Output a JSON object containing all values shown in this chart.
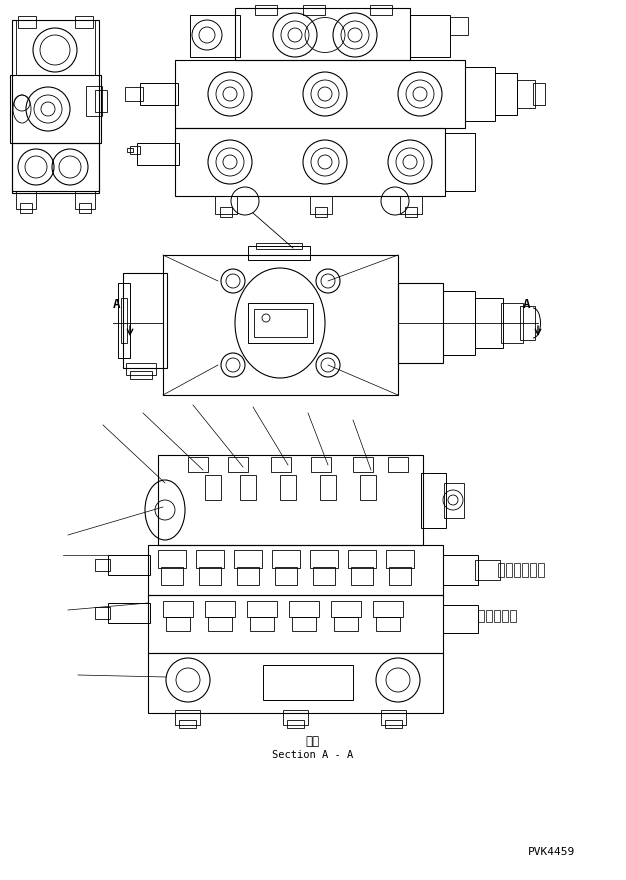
{
  "bg_color": "#ffffff",
  "line_color": "#000000",
  "fig_width": 6.26,
  "fig_height": 8.8,
  "dpi": 100,
  "section_label": "断面",
  "section_label2": "Section A - A",
  "pvk_label": "PVK4459"
}
